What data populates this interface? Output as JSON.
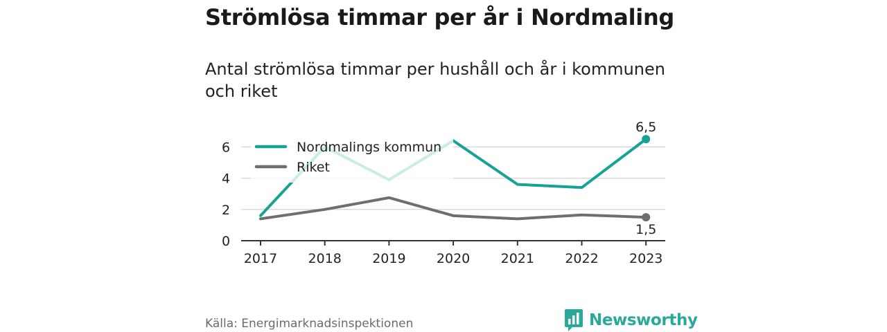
{
  "title": "Strömlösa timmar per år i Nordmaling",
  "subtitle": "Antal strömlösa timmar per hushåll och år i kommunen och riket",
  "source": "Källa: Energimarknadsinspektionen",
  "brand": "Newsworthy",
  "colors": {
    "nordmaling": "#16a394",
    "riket": "#6e6d73",
    "grid": "#d9d9d9",
    "brand": "#2aa89c"
  },
  "chart_data": {
    "type": "line",
    "x": [
      "2017",
      "2018",
      "2019",
      "2020",
      "2021",
      "2022",
      "2023"
    ],
    "ylim": [
      0,
      7
    ],
    "yticks": [
      "0",
      "2",
      "4",
      "6"
    ],
    "grid": true,
    "legend_position": "top-left",
    "series": [
      {
        "name": "Nordmalings kommun",
        "values": [
          1.6,
          6.0,
          3.9,
          6.4,
          3.6,
          3.4,
          6.5
        ],
        "end_label": "6,5"
      },
      {
        "name": "Riket",
        "values": [
          1.4,
          2.0,
          2.75,
          1.6,
          1.4,
          1.65,
          1.5
        ],
        "end_label": "1,5"
      }
    ]
  }
}
